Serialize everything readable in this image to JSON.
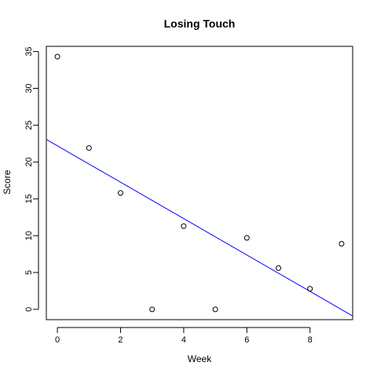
{
  "chart_data": {
    "type": "scatter",
    "title": "Losing Touch",
    "xlabel": "Week",
    "ylabel": "Score",
    "xlim": [
      -0.35,
      9.35
    ],
    "ylim": [
      -1.4,
      35.7
    ],
    "x_ticks": [
      0,
      2,
      4,
      6,
      8
    ],
    "y_ticks": [
      0,
      5,
      10,
      15,
      20,
      25,
      30,
      35
    ],
    "grid": false,
    "points": [
      {
        "x": 0,
        "y": 34.3
      },
      {
        "x": 1,
        "y": 21.9
      },
      {
        "x": 2,
        "y": 15.8
      },
      {
        "x": 3,
        "y": 0
      },
      {
        "x": 4,
        "y": 11.3
      },
      {
        "x": 5,
        "y": 0
      },
      {
        "x": 6,
        "y": 9.7
      },
      {
        "x": 7,
        "y": 5.6
      },
      {
        "x": 8,
        "y": 2.8
      },
      {
        "x": 9,
        "y": 8.9
      }
    ],
    "fit_line": {
      "intercept": 22.2,
      "slope": -2.47,
      "color": "#0000ff"
    },
    "point_color": "#000000"
  }
}
